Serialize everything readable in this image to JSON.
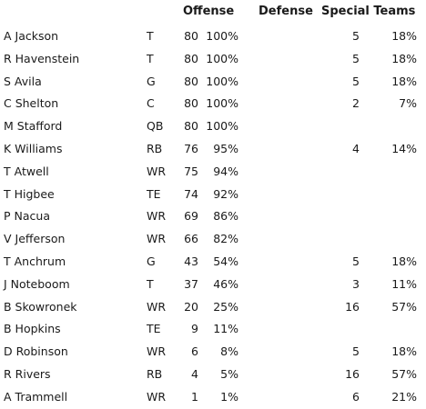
{
  "headers": {
    "offense": "Offense",
    "defense": "Defense",
    "special_teams": "Special Teams"
  },
  "rows": [
    {
      "name": "A Jackson",
      "pos": "T",
      "off_snaps": "80",
      "off_pct": "100%",
      "st_snaps": "5",
      "st_pct": "18%"
    },
    {
      "name": "R Havenstein",
      "pos": "T",
      "off_snaps": "80",
      "off_pct": "100%",
      "st_snaps": "5",
      "st_pct": "18%"
    },
    {
      "name": "S Avila",
      "pos": "G",
      "off_snaps": "80",
      "off_pct": "100%",
      "st_snaps": "5",
      "st_pct": "18%"
    },
    {
      "name": "C Shelton",
      "pos": "C",
      "off_snaps": "80",
      "off_pct": "100%",
      "st_snaps": "2",
      "st_pct": "7%"
    },
    {
      "name": "M Stafford",
      "pos": "QB",
      "off_snaps": "80",
      "off_pct": "100%",
      "st_snaps": "",
      "st_pct": ""
    },
    {
      "name": "K Williams",
      "pos": "RB",
      "off_snaps": "76",
      "off_pct": "95%",
      "st_snaps": "4",
      "st_pct": "14%"
    },
    {
      "name": "T Atwell",
      "pos": "WR",
      "off_snaps": "75",
      "off_pct": "94%",
      "st_snaps": "",
      "st_pct": ""
    },
    {
      "name": "T Higbee",
      "pos": "TE",
      "off_snaps": "74",
      "off_pct": "92%",
      "st_snaps": "",
      "st_pct": ""
    },
    {
      "name": "P Nacua",
      "pos": "WR",
      "off_snaps": "69",
      "off_pct": "86%",
      "st_snaps": "",
      "st_pct": ""
    },
    {
      "name": "V Jefferson",
      "pos": "WR",
      "off_snaps": "66",
      "off_pct": "82%",
      "st_snaps": "",
      "st_pct": ""
    },
    {
      "name": "T Anchrum",
      "pos": "G",
      "off_snaps": "43",
      "off_pct": "54%",
      "st_snaps": "5",
      "st_pct": "18%"
    },
    {
      "name": "J Noteboom",
      "pos": "T",
      "off_snaps": "37",
      "off_pct": "46%",
      "st_snaps": "3",
      "st_pct": "11%"
    },
    {
      "name": "B Skowronek",
      "pos": "WR",
      "off_snaps": "20",
      "off_pct": "25%",
      "st_snaps": "16",
      "st_pct": "57%"
    },
    {
      "name": "B Hopkins",
      "pos": "TE",
      "off_snaps": "9",
      "off_pct": "11%",
      "st_snaps": "",
      "st_pct": ""
    },
    {
      "name": "D Robinson",
      "pos": "WR",
      "off_snaps": "6",
      "off_pct": "8%",
      "st_snaps": "5",
      "st_pct": "18%"
    },
    {
      "name": "R Rivers",
      "pos": "RB",
      "off_snaps": "4",
      "off_pct": "5%",
      "st_snaps": "16",
      "st_pct": "57%"
    },
    {
      "name": "A Trammell",
      "pos": "WR",
      "off_snaps": "1",
      "off_pct": "1%",
      "st_snaps": "6",
      "st_pct": "21%"
    }
  ]
}
